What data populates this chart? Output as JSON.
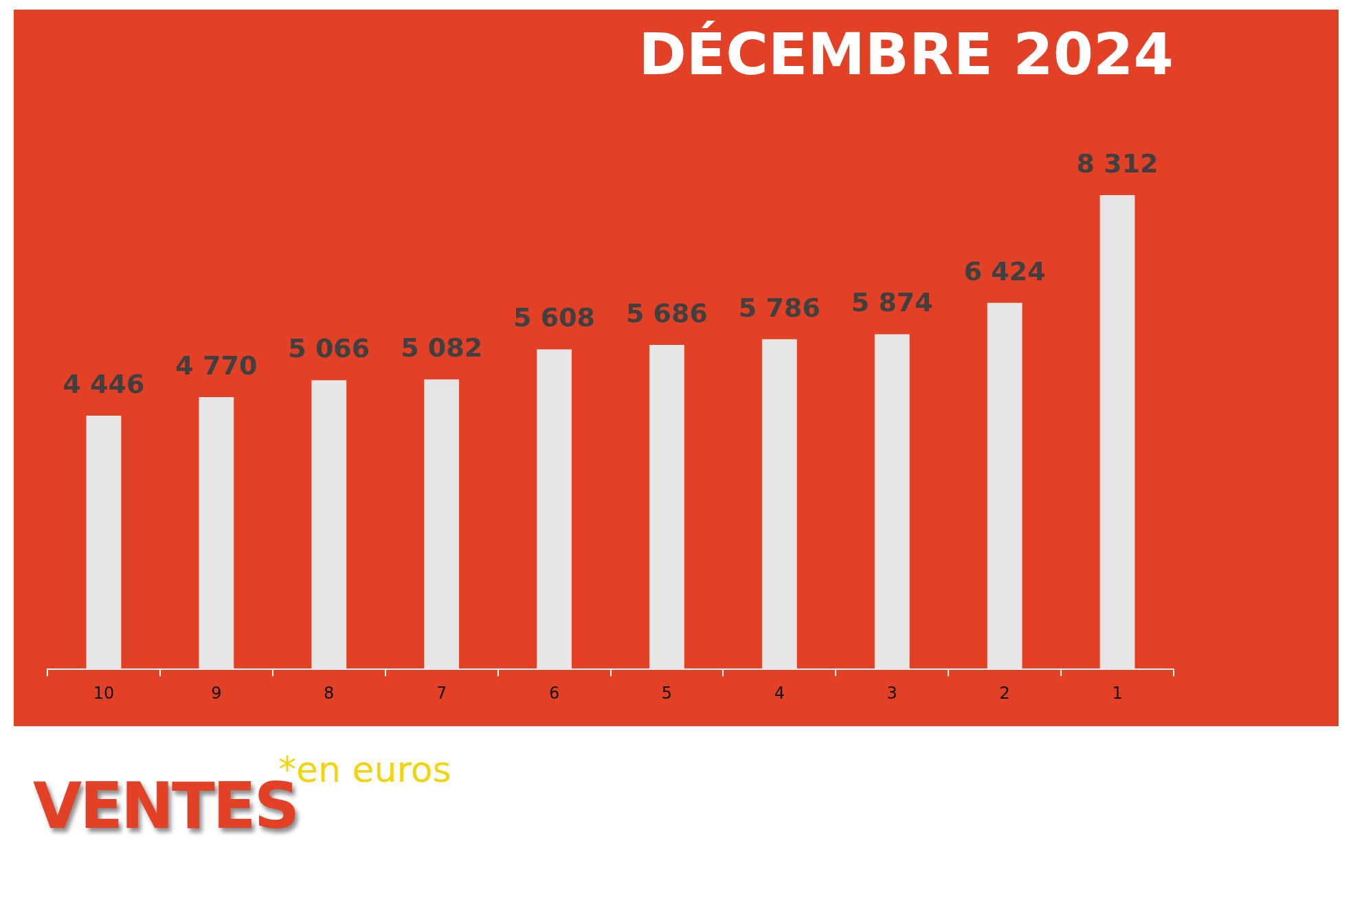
{
  "chart_data": {
    "type": "bar",
    "title": "DÉCEMBRE 2024",
    "categories": [
      "10",
      "9",
      "8",
      "7",
      "6",
      "5",
      "4",
      "3",
      "2",
      "1"
    ],
    "values": [
      4446,
      4770,
      5066,
      5082,
      5608,
      5686,
      5786,
      5874,
      6424,
      8312
    ],
    "value_labels": [
      "4 446",
      "4 770",
      "5 066",
      "5 082",
      "5 608",
      "5 686",
      "5 786",
      "5 874",
      "6 424",
      "8 312"
    ],
    "color": "#e6e6e6",
    "annotations": [
      "VENTES",
      "*en euros"
    ]
  }
}
